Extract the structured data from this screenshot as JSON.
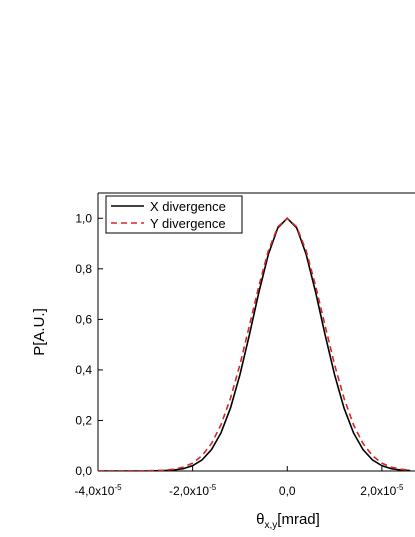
{
  "chart_data": {
    "type": "line",
    "x_label": {
      "text": "θ",
      "subscript": "x,y",
      "suffix": "[mrad]"
    },
    "y_label": "P[A.U.]",
    "x": [
      -4e-05,
      -3e-05,
      -2.6e-05,
      -2.4e-05,
      -2.2e-05,
      -2e-05,
      -1.8e-05,
      -1.6e-05,
      -1.4e-05,
      -1.2e-05,
      -1e-05,
      -8e-06,
      -6e-06,
      -4e-06,
      -2e-06,
      0,
      2e-06,
      4e-06,
      6e-06,
      8e-06,
      1e-05,
      1.2e-05,
      1.4e-05,
      1.6e-05,
      1.8e-05,
      2e-05,
      2.2e-05,
      2.4e-05,
      2.6e-05
    ],
    "series": [
      {
        "name": "X divergence",
        "color": "#000000",
        "dash": "solid",
        "values": [
          0,
          0,
          0.002,
          0.004,
          0.009,
          0.021,
          0.044,
          0.085,
          0.151,
          0.249,
          0.381,
          0.539,
          0.707,
          0.857,
          0.962,
          1,
          0.962,
          0.857,
          0.707,
          0.539,
          0.381,
          0.249,
          0.151,
          0.085,
          0.044,
          0.021,
          0.009,
          0.004,
          0.002
        ]
      },
      {
        "name": "Y divergence",
        "color": "#d62728",
        "dash": "dashed",
        "values": [
          0,
          0.001,
          0.003,
          0.007,
          0.015,
          0.031,
          0.061,
          0.109,
          0.183,
          0.288,
          0.421,
          0.575,
          0.732,
          0.871,
          0.966,
          1,
          0.966,
          0.871,
          0.732,
          0.575,
          0.421,
          0.288,
          0.183,
          0.109,
          0.061,
          0.031,
          0.015,
          0.007,
          0.003
        ]
      }
    ],
    "xlim": [
      -4e-05,
      2.7e-05
    ],
    "xticks": [
      {
        "value": -4e-05,
        "label": "-4,0x10",
        "exponent": "-5"
      },
      {
        "value": -2e-05,
        "label": "-2,0x10",
        "exponent": "-5"
      },
      {
        "value": 0,
        "label": "0,0"
      },
      {
        "value": 2e-05,
        "label": "2,0x10",
        "exponent": "-5"
      }
    ],
    "ylim": [
      0,
      1.1
    ],
    "yticks": [
      {
        "value": 0,
        "label": "0,0"
      },
      {
        "value": 0.2,
        "label": "0,2"
      },
      {
        "value": 0.4,
        "label": "0,4"
      },
      {
        "value": 0.6,
        "label": "0,6"
      },
      {
        "value": 0.8,
        "label": "0,8"
      },
      {
        "value": 1,
        "label": "1,0"
      }
    ],
    "legend": "top-left",
    "grid": false
  }
}
